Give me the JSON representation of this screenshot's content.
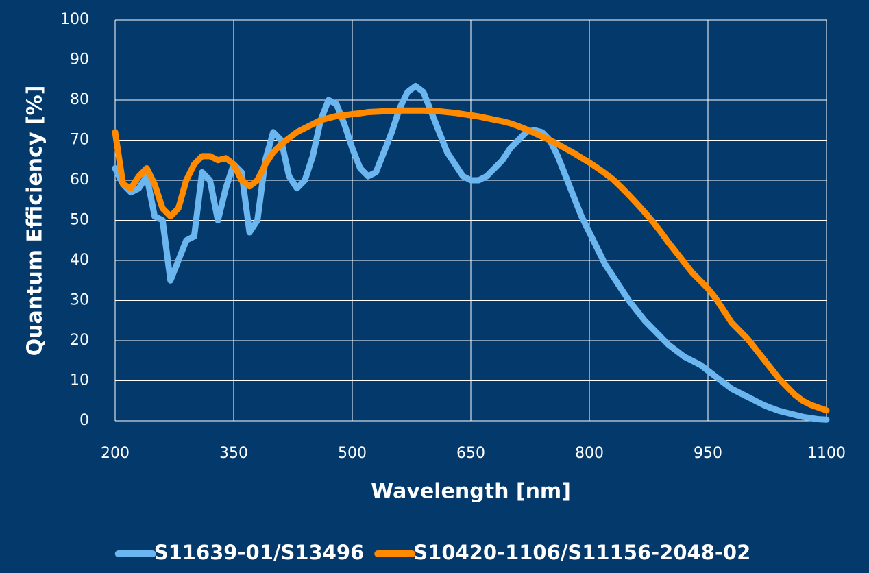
{
  "chart_data": {
    "type": "line",
    "x_label": "Wavelength [nm]",
    "y_label": "Quantum Efficiency [%]",
    "x": [
      200,
      210,
      220,
      230,
      240,
      250,
      260,
      270,
      280,
      290,
      300,
      310,
      320,
      330,
      340,
      350,
      360,
      370,
      380,
      390,
      400,
      410,
      420,
      430,
      440,
      450,
      460,
      470,
      480,
      490,
      500,
      510,
      520,
      530,
      540,
      550,
      560,
      570,
      580,
      590,
      600,
      610,
      620,
      630,
      640,
      650,
      660,
      670,
      680,
      690,
      700,
      710,
      720,
      730,
      740,
      750,
      760,
      770,
      780,
      790,
      800,
      810,
      820,
      830,
      840,
      850,
      860,
      870,
      880,
      890,
      900,
      910,
      920,
      930,
      940,
      950,
      960,
      970,
      980,
      990,
      1000,
      1010,
      1020,
      1030,
      1040,
      1050,
      1060,
      1070,
      1080,
      1090,
      1100
    ],
    "series": [
      {
        "name": "S11639-01/S13496",
        "color": "#6cb6f0",
        "values": [
          63,
          59,
          57,
          58,
          61,
          51,
          50,
          35,
          40,
          45,
          46,
          62,
          60,
          50,
          58,
          64,
          62,
          47,
          50,
          65,
          72,
          70,
          61,
          58,
          60,
          66,
          75,
          80,
          79,
          74,
          68,
          63,
          61,
          62,
          67,
          72,
          78,
          82,
          83.5,
          82,
          77,
          72,
          67,
          64,
          61,
          60,
          60,
          61,
          63,
          65,
          68,
          70,
          72,
          72.5,
          72,
          70,
          66,
          61,
          56,
          51,
          47,
          43,
          39,
          36,
          33,
          30,
          27.5,
          25,
          23,
          21,
          19,
          17.5,
          16,
          15,
          14,
          12.5,
          11,
          9.5,
          8,
          7,
          6,
          5,
          4,
          3.2,
          2.5,
          2,
          1.5,
          1,
          0.7,
          0.4,
          0.3
        ]
      },
      {
        "name": "S10420-1106/S11156-2048-02",
        "color": "#ff8a00",
        "values": [
          72,
          59,
          58,
          61,
          63,
          59,
          53,
          51,
          53,
          60,
          64,
          66,
          66,
          65,
          65.5,
          64,
          60,
          58.5,
          60,
          64,
          67,
          69,
          70.5,
          72,
          73,
          74,
          75,
          75.5,
          76,
          76.2,
          76.5,
          76.7,
          77,
          77.1,
          77.2,
          77.3,
          77.4,
          77.4,
          77.4,
          77.4,
          77.3,
          77.2,
          77,
          76.8,
          76.5,
          76.2,
          75.9,
          75.5,
          75.1,
          74.7,
          74.2,
          73.5,
          72.7,
          71.8,
          70.9,
          70,
          69,
          67.9,
          66.8,
          65.6,
          64.4,
          63.1,
          61.7,
          60.2,
          58.3,
          56.3,
          54.2,
          52,
          49.7,
          47.2,
          44.5,
          42,
          39.5,
          37,
          35,
          33,
          30.5,
          27.5,
          24.5,
          22.5,
          20.5,
          18,
          15.5,
          13,
          10.5,
          8.5,
          6.5,
          5,
          4,
          3.3,
          2.6
        ]
      }
    ],
    "xlim": [
      200,
      1100
    ],
    "xticks": [
      200,
      350,
      500,
      650,
      800,
      950,
      1100
    ],
    "ylim": [
      0,
      100
    ],
    "yticks": [
      0,
      10,
      20,
      30,
      40,
      50,
      60,
      70,
      80,
      90,
      100
    ],
    "grid": true,
    "legend": "bottom"
  }
}
